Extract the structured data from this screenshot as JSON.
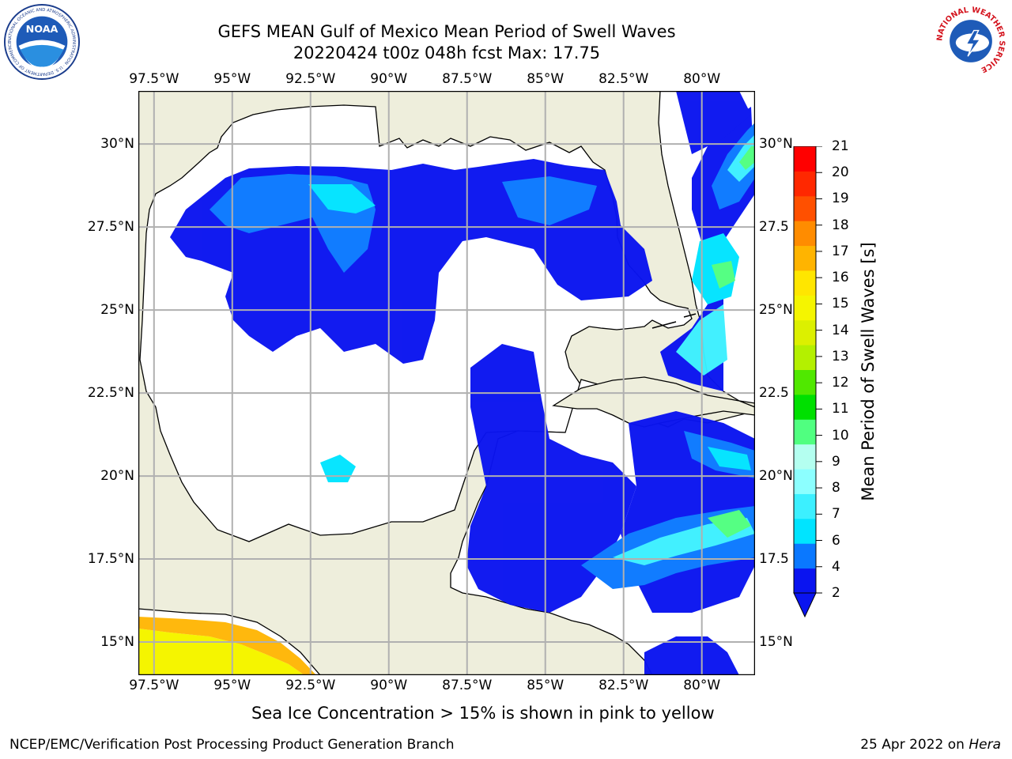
{
  "title": {
    "line1": "GEFS MEAN Gulf of Mexico Mean Period of Swell Waves",
    "line2": "20220424 t00z 048h fcst   Max: 17.75"
  },
  "logos": {
    "noaa_text": "NOAA",
    "noaa_ring": "NATIONAL OCEANIC AND ATMOSPHERIC ADMINISTRATION · U.S. DEPARTMENT OF COMMERCE",
    "nws_ring": "NATIONAL WEATHER SERVICE"
  },
  "map": {
    "lon_ticks": [
      "97.5°W",
      "95°W",
      "92.5°W",
      "90°W",
      "87.5°W",
      "85°W",
      "82.5°W",
      "80°W"
    ],
    "lat_ticks_left": [
      "30°N",
      "27.5°N",
      "25°N",
      "22.5°N",
      "20°N",
      "17.5°N",
      "15°N"
    ],
    "lat_ticks_right": [
      "30°N",
      "27.5",
      "25°N",
      "22.5",
      "20°N",
      "17.5",
      "15°N"
    ],
    "lon_range": [
      -98,
      -78.3
    ],
    "lat_range": [
      14,
      31.6
    ],
    "colors": {
      "land": "#eeeedc",
      "ocean": "#ffffff",
      "grid": "#b0b0b0",
      "coast": "#000000"
    }
  },
  "colorbar": {
    "label": "Mean Period of Swell Waves [s]",
    "ticks": [
      "2",
      "4",
      "6",
      "7",
      "8",
      "9",
      "10",
      "11",
      "12",
      "13",
      "14",
      "15",
      "16",
      "17",
      "18",
      "19",
      "20",
      "21"
    ],
    "colors": [
      "#0a14f0",
      "#0a78ff",
      "#00e4ff",
      "#3cf0ff",
      "#8cffff",
      "#b4fff0",
      "#50ff80",
      "#00e000",
      "#50e800",
      "#b4f000",
      "#dcf000",
      "#f5f500",
      "#ffe600",
      "#ffb400",
      "#ff8c00",
      "#ff5000",
      "#ff2800",
      "#ff0000"
    ]
  },
  "caption": "Sea Ice Concentration > 15% is shown in pink to yellow",
  "footer": {
    "credit": "NCEP/EMC/Verification Post Processing Product Generation Branch",
    "date": "25 Apr 2022 on ",
    "machine": "Hera"
  }
}
